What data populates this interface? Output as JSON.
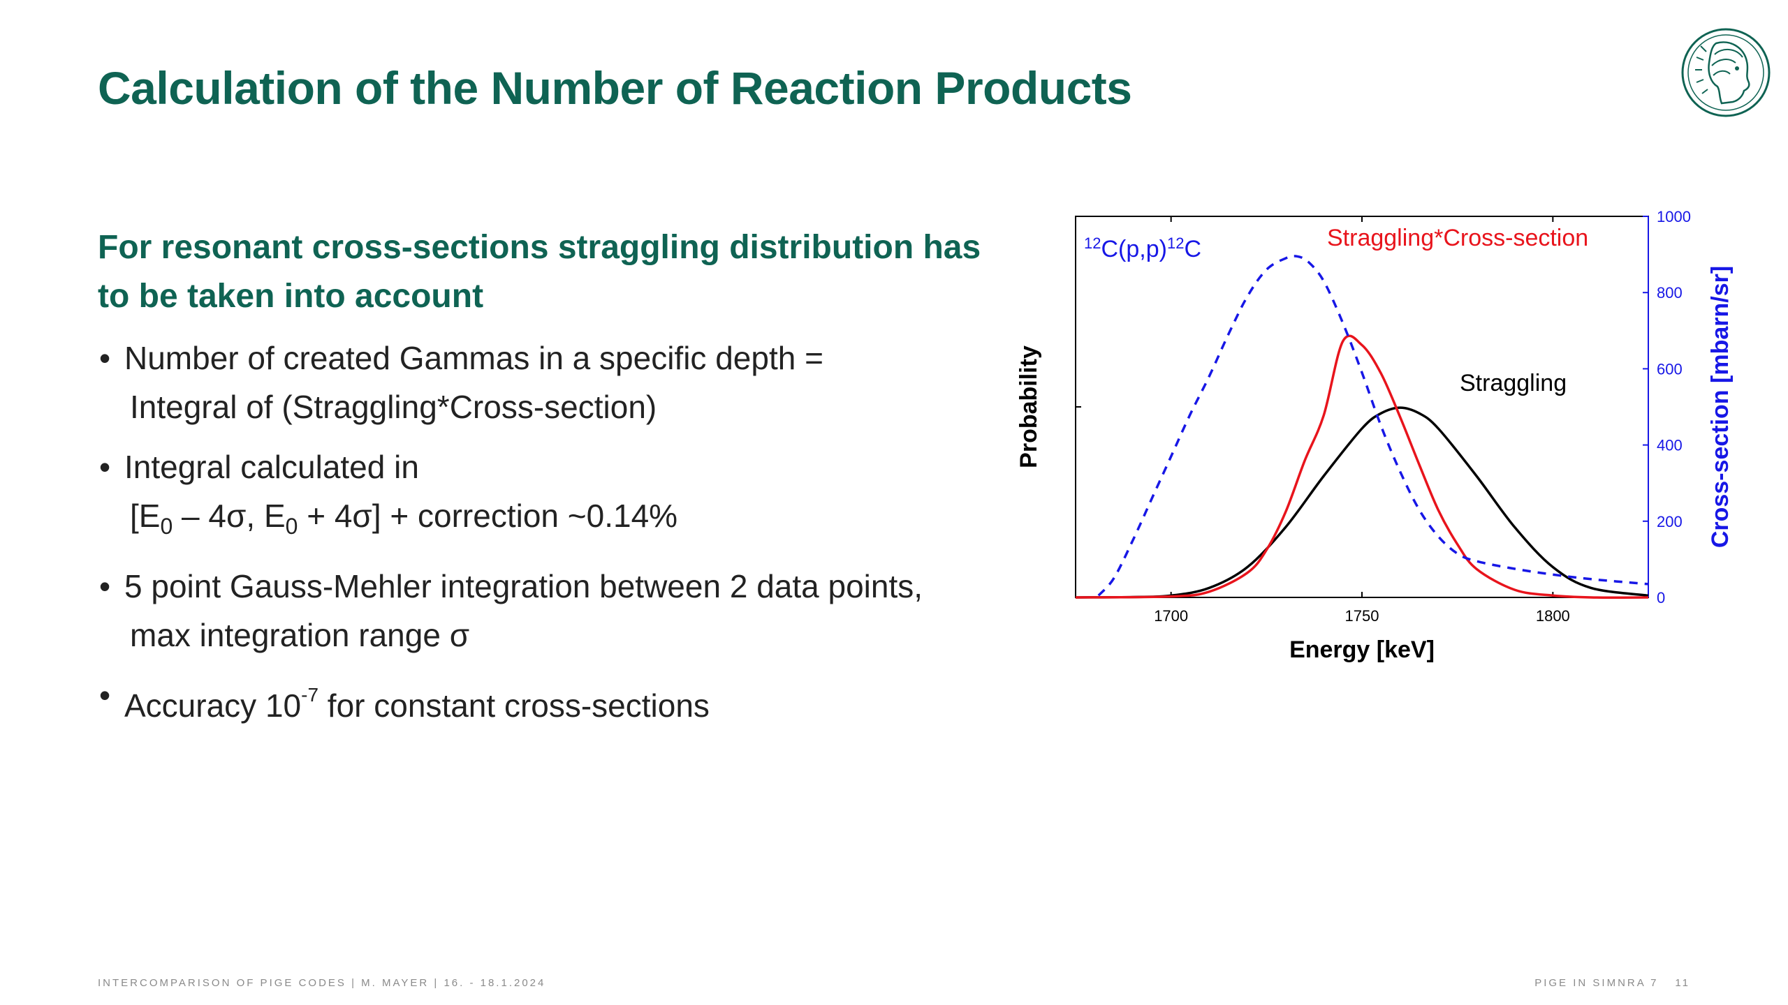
{
  "slide": {
    "title": "Calculation of the Number of Reaction Products",
    "subtitle_line1": "For resonant cross-sections straggling distribution has",
    "subtitle_line2": "to be taken into account"
  },
  "bullets": {
    "b1_line1": "Number of created Gammas in a specific depth =",
    "b1_line2": "Integral of (Straggling*Cross-section)",
    "b2_line1": "Integral calculated in",
    "b2_l2_open": "[E",
    "b2_l2_sub1": "0",
    "b2_l2_mid": " – 4σ, E",
    "b2_l2_sub2": "0",
    "b2_l2_end": " + 4σ] + correction ~0.14%",
    "b3_line1": "5 point Gauss-Mehler integration between 2 data points,",
    "b3_line2": "max integration range σ",
    "b4_pre": "Accuracy  10",
    "b4_sup": "-7",
    "b4_post": " for constant cross-sections",
    "bullet_glyph": "•"
  },
  "footer": {
    "left": "INTERCOMPARISON OF PIGE CODES | M. MAYER | 16. - 18.1.2024",
    "right": "PIGE IN SIMNRA 7",
    "page": "11"
  },
  "logo": {
    "icon": "max-planck-minerva-logo",
    "color": "#0f6353"
  },
  "chart_data": {
    "type": "line",
    "xlabel": "Energy [keV]",
    "ylabel_left": "Probability",
    "ylabel_right": "Cross-section [mbarn/sr]",
    "xlim": [
      1675,
      1825
    ],
    "ylim_right": [
      0,
      1000
    ],
    "x_ticks": [
      1700,
      1750,
      1800
    ],
    "x_tick_labels": [
      "1700",
      "1750",
      "1800"
    ],
    "y_right_ticks": [
      0,
      200,
      400,
      600,
      800,
      1000
    ],
    "y_right_tick_labels": [
      "0",
      "200",
      "400",
      "600",
      "800",
      "1000"
    ],
    "reaction_pre": "12",
    "reaction_mid": "C(p,p)",
    "reaction_sup2": "12",
    "reaction_post": "C",
    "colors": {
      "straggling": "#000000",
      "product": "#e8141c",
      "cross_section": "#1717e6",
      "right_axis": "#1717e6"
    },
    "series": [
      {
        "name": "Straggling",
        "style": "solid",
        "x": [
          1675,
          1690,
          1700,
          1710,
          1720,
          1730,
          1740,
          1750,
          1755,
          1760,
          1765,
          1770,
          1780,
          1790,
          1800,
          1810,
          1825
        ],
        "y_rel": [
          0.0,
          0.002,
          0.01,
          0.05,
          0.16,
          0.37,
          0.64,
          0.89,
          0.97,
          1.0,
          0.97,
          0.89,
          0.64,
          0.37,
          0.16,
          0.05,
          0.01
        ]
      },
      {
        "name": "Straggling*Cross-section",
        "style": "solid",
        "x": [
          1675,
          1700,
          1710,
          1720,
          1725,
          1730,
          1735,
          1740,
          1745,
          1750,
          1755,
          1760,
          1765,
          1770,
          1775,
          1780,
          1790,
          1800,
          1810,
          1825
        ],
        "y_rel": [
          0.0,
          0.005,
          0.03,
          0.13,
          0.25,
          0.45,
          0.72,
          0.96,
          1.35,
          1.33,
          1.18,
          0.95,
          0.7,
          0.46,
          0.28,
          0.15,
          0.04,
          0.01,
          0.0,
          0.0
        ]
      },
      {
        "name": "12C(p,p)12C",
        "style": "dashed",
        "x": [
          1681,
          1685,
          1690,
          1695,
          1700,
          1705,
          1710,
          1715,
          1720,
          1725,
          1730,
          1733,
          1736,
          1740,
          1745,
          1750,
          1755,
          1760,
          1765,
          1770,
          1775,
          1780,
          1790,
          1800,
          1810,
          1825
        ],
        "y": [
          5,
          50,
          150,
          260,
          370,
          480,
          580,
          690,
          790,
          860,
          890,
          895,
          880,
          830,
          720,
          590,
          450,
          330,
          230,
          160,
          115,
          95,
          75,
          60,
          48,
          35
        ]
      }
    ]
  }
}
